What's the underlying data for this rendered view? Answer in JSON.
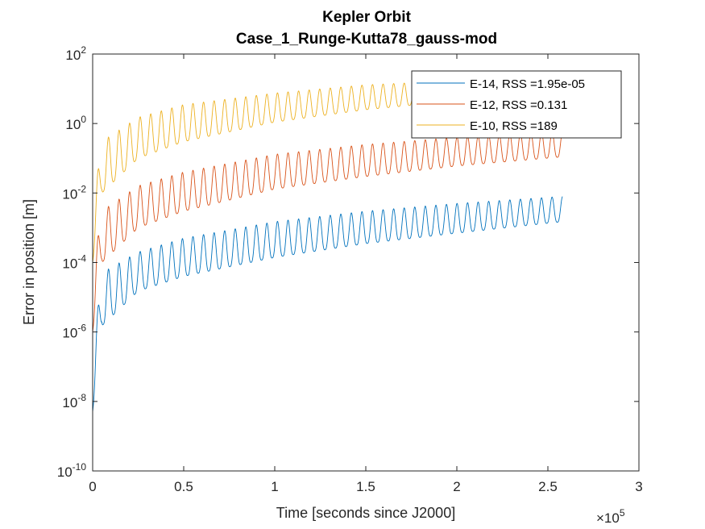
{
  "chart_data": {
    "type": "line",
    "title": "Kepler Orbit",
    "subtitle": "Case_1_Runge-Kutta78_gauss-mod",
    "xlabel": "Time [seconds since J2000]",
    "ylabel": "Error in position [m]",
    "x_exponent_label": "×10",
    "x_exponent": "5",
    "xlim": [
      0,
      300000
    ],
    "ylim": [
      1e-10,
      100
    ],
    "yscale": "log",
    "x_ticks": [
      0,
      0.5,
      1,
      1.5,
      2,
      2.5,
      3
    ],
    "x_tick_labels": [
      "0",
      "0.5",
      "1",
      "1.5",
      "2",
      "2.5",
      "3"
    ],
    "y_ticks": [
      -10,
      -8,
      -6,
      -4,
      -2,
      0,
      2
    ],
    "y_tick_base": "10",
    "y_tick_exponents": [
      "-10",
      "-8",
      "-6",
      "-4",
      "-2",
      "0",
      "2"
    ],
    "grid": false,
    "legend_position": "top-right",
    "oscillation_period": 5800,
    "x_end": 258000,
    "series": [
      {
        "name": "E-14, RSS =1.95e-05",
        "color": "#0072BD",
        "x": [
          0,
          5000,
          25000,
          50000,
          100000,
          150000,
          200000,
          258000
        ],
        "trough": [
          5e-09,
          1.5e-06,
          1.5e-05,
          4e-05,
          0.00014,
          0.00035,
          0.0007,
          0.0015
        ],
        "peak": [
          2e-07,
          5e-05,
          0.0002,
          0.0005,
          0.0015,
          0.003,
          0.005,
          0.008
        ]
      },
      {
        "name": "E-12, RSS =0.131",
        "color": "#D95319",
        "x": [
          0,
          5000,
          25000,
          50000,
          100000,
          150000,
          200000,
          258000
        ],
        "trough": [
          1e-06,
          0.0001,
          0.001,
          0.003,
          0.013,
          0.03,
          0.06,
          0.11
        ],
        "peak": [
          5e-05,
          0.003,
          0.016,
          0.04,
          0.13,
          0.25,
          0.4,
          0.6
        ]
      },
      {
        "name": "E-10, RSS =189",
        "color": "#EDB120",
        "x": [
          0,
          5000,
          25000,
          50000,
          100000,
          150000,
          200000,
          258000
        ],
        "trough": [
          0.0001,
          0.01,
          0.1,
          0.3,
          1.1,
          2.5,
          4.5,
          7
        ],
        "peak": [
          0.003,
          0.3,
          1.5,
          3.5,
          7.5,
          13,
          17,
          20
        ]
      }
    ]
  }
}
